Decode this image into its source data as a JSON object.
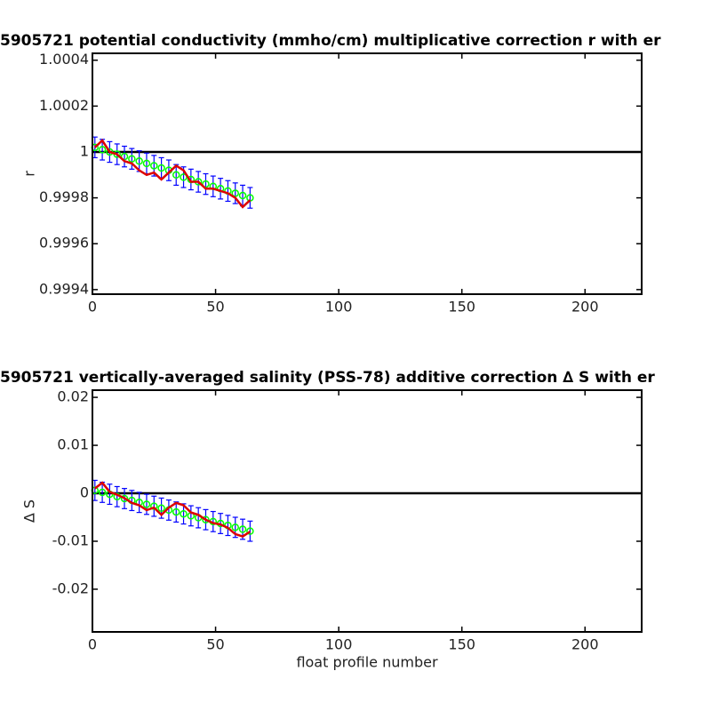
{
  "chart_data": [
    {
      "type": "line",
      "title": "5905721 potential conductivity (mmho/cm) multiplicative correction r with er",
      "ylabel": "r",
      "x": [
        1,
        4,
        7,
        10,
        13,
        16,
        19,
        22,
        25,
        28,
        31,
        34,
        37,
        40,
        43,
        46,
        49,
        52,
        55,
        58,
        61,
        64
      ],
      "series": [
        {
          "color": "#0000ff",
          "values": [
            1.00002,
            1.00001,
            1.0,
            0.99999,
            0.99998,
            0.99997,
            0.99996,
            0.99995,
            0.99994,
            0.99993,
            0.99992,
            0.9999,
            0.99989,
            0.99988,
            0.99987,
            0.99986,
            0.99985,
            0.99984,
            0.99983,
            0.99982,
            0.99981,
            0.9998
          ],
          "errors": [
            4.5e-05,
            4.5e-05,
            4.5e-05,
            4.5e-05,
            4.5e-05,
            4.5e-05,
            4.5e-05,
            4.5e-05,
            4.5e-05,
            4.5e-05,
            4.5e-05,
            4.5e-05,
            4.5e-05,
            4.5e-05,
            4.5e-05,
            4.5e-05,
            4.5e-05,
            4.5e-05,
            4.5e-05,
            4.5e-05,
            4.5e-05,
            4.5e-05
          ],
          "marker_color": "#00ff00"
        },
        {
          "color": "#dd0000",
          "values": [
            1.00002,
            1.00005,
            1.0,
            0.99999,
            0.99996,
            0.99995,
            0.99992,
            0.9999,
            0.99991,
            0.99988,
            0.99991,
            0.99994,
            0.99992,
            0.99987,
            0.99987,
            0.99984,
            0.99984,
            0.99983,
            0.99982,
            0.9998,
            0.99976,
            0.99979
          ]
        }
      ],
      "reference": 1,
      "xlim": [
        0,
        223
      ],
      "xticks": [
        0,
        50,
        100,
        150,
        200
      ],
      "ylim": [
        0.99938,
        1.00043
      ],
      "yticks": [
        1.0004,
        1.0002,
        1,
        0.9998,
        0.9996,
        0.9994
      ]
    },
    {
      "type": "line",
      "title": "5905721 vertically-averaged salinity (PSS-78) additive correction ∆ S with er",
      "ylabel": "∆ S",
      "xlabel": "float profile number",
      "x": [
        1,
        4,
        7,
        10,
        13,
        16,
        19,
        22,
        25,
        28,
        31,
        34,
        37,
        40,
        43,
        46,
        49,
        52,
        55,
        58,
        61,
        64
      ],
      "series": [
        {
          "color": "#0000ff",
          "values": [
            0.0006,
            0.0002,
            -0.0002,
            -0.0007,
            -0.0011,
            -0.0015,
            -0.0019,
            -0.0023,
            -0.0027,
            -0.0031,
            -0.0035,
            -0.0039,
            -0.0043,
            -0.0047,
            -0.0051,
            -0.0055,
            -0.0059,
            -0.0063,
            -0.0067,
            -0.0071,
            -0.0075,
            -0.0079
          ],
          "errors": [
            0.0021,
            0.0021,
            0.0021,
            0.0021,
            0.0021,
            0.0021,
            0.0021,
            0.0021,
            0.0021,
            0.0021,
            0.0021,
            0.0021,
            0.0021,
            0.0021,
            0.0021,
            0.0021,
            0.0021,
            0.0021,
            0.0021,
            0.0021,
            0.0021,
            0.0021
          ],
          "marker_color": "#00ff00"
        },
        {
          "color": "#dd0000",
          "values": [
            0.001,
            0.0022,
            0.0003,
            -0.0003,
            -0.001,
            -0.002,
            -0.0025,
            -0.0035,
            -0.003,
            -0.0045,
            -0.003,
            -0.002,
            -0.0025,
            -0.004,
            -0.0045,
            -0.0055,
            -0.0062,
            -0.0065,
            -0.0072,
            -0.0085,
            -0.009,
            -0.008
          ]
        }
      ],
      "reference": 0,
      "xlim": [
        0,
        223
      ],
      "xticks": [
        0,
        50,
        100,
        150,
        200
      ],
      "ylim": [
        -0.0289,
        0.0215
      ],
      "yticks": [
        0.02,
        0.01,
        0,
        -0.01,
        -0.02
      ]
    }
  ]
}
